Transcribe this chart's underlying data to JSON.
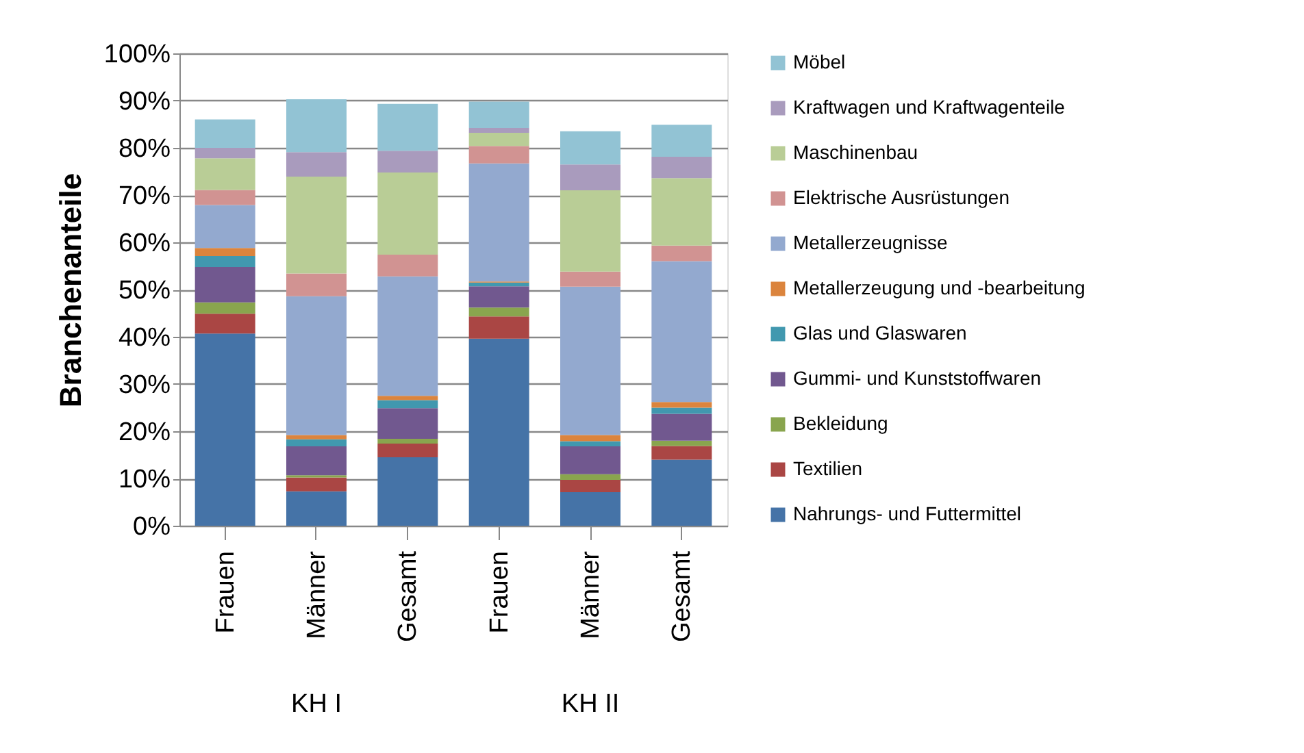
{
  "chart_data": {
    "type": "bar",
    "stacked": true,
    "ylabel": "Branchenanteile",
    "categories": [
      "Frauen",
      "Männer",
      "Gesamt",
      "Frauen",
      "Männer",
      "Gesamt"
    ],
    "annotations": [
      "KH I",
      "KH II"
    ],
    "ylim": [
      0,
      100
    ],
    "yticks": [
      {
        "value": 0,
        "label": "0%"
      },
      {
        "value": 10,
        "label": "10%"
      },
      {
        "value": 20,
        "label": "20%"
      },
      {
        "value": 30,
        "label": "30%"
      },
      {
        "value": 40,
        "label": "40%"
      },
      {
        "value": 50,
        "label": "50%"
      },
      {
        "value": 60,
        "label": "60%"
      },
      {
        "value": 70,
        "label": "70%"
      },
      {
        "value": 80,
        "label": "80%"
      },
      {
        "value": 90,
        "label": "90%"
      },
      {
        "value": 100,
        "label": "100%"
      }
    ],
    "grid": "y",
    "legend": "right",
    "series": [
      {
        "name": "Nahrungs- und Futtermittel",
        "color": "#4573a7",
        "values": [
          40.7,
          7.3,
          14.5,
          39.6,
          7.1,
          14.0
        ]
      },
      {
        "name": "Textilien",
        "color": "#aa4644",
        "values": [
          4.2,
          2.9,
          2.9,
          4.7,
          2.6,
          2.9
        ]
      },
      {
        "name": "Bekleidung",
        "color": "#89a54e",
        "values": [
          2.4,
          0.5,
          1.0,
          1.9,
          1.2,
          1.1
        ]
      },
      {
        "name": "Gummi- und Kunststoffwaren",
        "color": "#71588f",
        "values": [
          7.5,
          6.1,
          6.5,
          4.5,
          5.9,
          5.7
        ]
      },
      {
        "name": "Glas und Glaswaren",
        "color": "#4198af",
        "values": [
          2.3,
          1.5,
          1.7,
          0.8,
          1.1,
          1.3
        ]
      },
      {
        "name": "Metallerzeugung und -bearbeitung",
        "color": "#db843d",
        "values": [
          1.7,
          0.9,
          0.9,
          0.2,
          1.3,
          1.2
        ]
      },
      {
        "name": "Metallerzeugnisse",
        "color": "#93a9cf",
        "values": [
          9.1,
          29.4,
          25.3,
          25.0,
          31.4,
          29.8
        ]
      },
      {
        "name": "Elektrische Ausrüstungen",
        "color": "#d19392",
        "values": [
          3.2,
          4.8,
          4.6,
          3.7,
          3.2,
          3.3
        ]
      },
      {
        "name": "Maschinenbau",
        "color": "#b9cd96",
        "values": [
          6.7,
          20.5,
          17.4,
          2.8,
          17.2,
          14.3
        ]
      },
      {
        "name": "Kraftwagen und Kraftwagenteile",
        "color": "#a99bbd",
        "values": [
          2.2,
          5.2,
          4.6,
          1.0,
          5.5,
          4.5
        ]
      },
      {
        "name": "Möbel",
        "color": "#92c3d4",
        "values": [
          6.0,
          11.2,
          9.9,
          5.6,
          7.0,
          6.8
        ]
      }
    ]
  }
}
